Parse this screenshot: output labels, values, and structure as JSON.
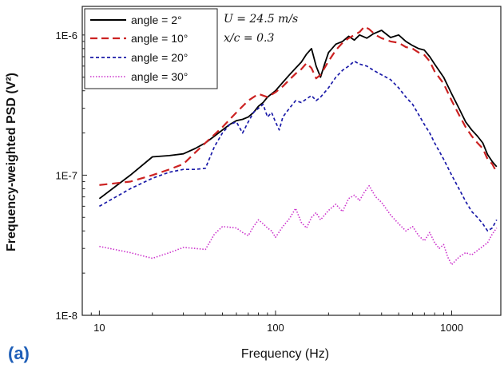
{
  "chart_data": {
    "type": "line",
    "panel_label": "(a)",
    "xlabel": "Frequency (Hz)",
    "ylabel": "Frequency-weighted PSD (V²)",
    "xscale": "log",
    "yscale": "log",
    "xlim": [
      8,
      1900
    ],
    "ylim": [
      1e-08,
      1.6e-06
    ],
    "x_ticks": [
      10,
      100,
      1000
    ],
    "x_tick_labels": [
      "10",
      "100",
      "1000"
    ],
    "y_ticks": [
      1e-08,
      1e-07,
      1e-06
    ],
    "y_tick_labels": [
      "1E-8",
      "1E-7",
      "1E-6"
    ],
    "grid": false,
    "legend_position": "top-left",
    "annotations": [
      "U = 24.5 m/s",
      "x/c = 0.3"
    ],
    "colors": {
      "angle_2": "#000000",
      "angle_10": "#cc2222",
      "angle_20": "#1a1aa8",
      "angle_30": "#cc33cc",
      "panel_label": "#1f5fb8"
    },
    "series": [
      {
        "name": "angle = 2°",
        "color": "#000000",
        "dash": "solid",
        "x": [
          10,
          15,
          20,
          25,
          30,
          35,
          40,
          45,
          50,
          55,
          60,
          65,
          70,
          75,
          80,
          85,
          90,
          95,
          100,
          110,
          120,
          130,
          140,
          150,
          160,
          170,
          180,
          190,
          200,
          220,
          240,
          260,
          280,
          300,
          330,
          360,
          400,
          450,
          500,
          550,
          600,
          650,
          700,
          750,
          800,
          900,
          1000,
          1100,
          1200,
          1300,
          1400,
          1500,
          1600,
          1700,
          1800
        ],
        "y": [
          6.8e-08,
          1e-07,
          1.35e-07,
          1.38e-07,
          1.42e-07,
          1.55e-07,
          1.7e-07,
          1.9e-07,
          2.1e-07,
          2.3e-07,
          2.45e-07,
          2.5e-07,
          2.6e-07,
          2.8e-07,
          3.1e-07,
          3.3e-07,
          3.6e-07,
          3.8e-07,
          4e-07,
          4.6e-07,
          5.2e-07,
          5.8e-07,
          6.4e-07,
          7.3e-07,
          8e-07,
          6e-07,
          5e-07,
          6.2e-07,
          7.5e-07,
          8.6e-07,
          9e-07,
          9.8e-07,
          9.2e-07,
          1e-06,
          9.5e-07,
          1.02e-06,
          1.08e-06,
          9.6e-07,
          1e-06,
          9e-07,
          8.4e-07,
          8e-07,
          7.8e-07,
          7e-07,
          6.2e-07,
          5e-07,
          3.8e-07,
          3e-07,
          2.4e-07,
          2.1e-07,
          1.9e-07,
          1.7e-07,
          1.4e-07,
          1.25e-07,
          1.15e-07
        ]
      },
      {
        "name": "angle = 10°",
        "color": "#cc2222",
        "dash": "long-dash",
        "x": [
          10,
          15,
          20,
          25,
          30,
          35,
          40,
          45,
          50,
          55,
          60,
          65,
          70,
          75,
          80,
          90,
          100,
          110,
          120,
          130,
          140,
          150,
          160,
          170,
          180,
          200,
          220,
          240,
          260,
          280,
          300,
          320,
          340,
          370,
          400,
          450,
          500,
          550,
          600,
          650,
          700,
          750,
          800,
          900,
          1000,
          1100,
          1200,
          1300,
          1400,
          1500,
          1600,
          1700,
          1800
        ],
        "y": [
          8.5e-08,
          9e-08,
          1e-07,
          1.1e-07,
          1.2e-07,
          1.45e-07,
          1.7e-07,
          1.95e-07,
          2.2e-07,
          2.5e-07,
          2.8e-07,
          3.1e-07,
          3.4e-07,
          3.6e-07,
          3.8e-07,
          3.6e-07,
          3.9e-07,
          4.3e-07,
          4.8e-07,
          5.3e-07,
          5.7e-07,
          6.3e-07,
          5.8e-07,
          4.9e-07,
          5.2e-07,
          6.5e-07,
          7.8e-07,
          8.8e-07,
          9.5e-07,
          1e-06,
          1.05e-06,
          1.15e-06,
          1.1e-06,
          1e-06,
          9.5e-07,
          9e-07,
          8.8e-07,
          8.2e-07,
          8e-07,
          7.5e-07,
          7.2e-07,
          6.5e-07,
          5.5e-07,
          4.5e-07,
          3.4e-07,
          2.7e-07,
          2.2e-07,
          1.9e-07,
          1.7e-07,
          1.55e-07,
          1.3e-07,
          1.2e-07,
          1.05e-07
        ]
      },
      {
        "name": "angle = 20°",
        "color": "#1a1aa8",
        "dash": "short-dash",
        "x": [
          10,
          15,
          20,
          25,
          30,
          35,
          40,
          45,
          50,
          55,
          60,
          65,
          70,
          75,
          80,
          85,
          90,
          95,
          100,
          105,
          110,
          120,
          130,
          140,
          150,
          160,
          170,
          180,
          200,
          220,
          240,
          260,
          280,
          300,
          330,
          360,
          400,
          450,
          500,
          550,
          600,
          650,
          700,
          750,
          800,
          900,
          1000,
          1100,
          1200,
          1300,
          1400,
          1500,
          1600,
          1700,
          1800
        ],
        "y": [
          6e-08,
          8e-08,
          9.5e-08,
          1.05e-07,
          1.1e-07,
          1.1e-07,
          1.12e-07,
          1.6e-07,
          2e-07,
          2.3e-07,
          2.4e-07,
          2e-07,
          2.4e-07,
          2.8e-07,
          3e-07,
          3.2e-07,
          2.6e-07,
          2.8e-07,
          2.4e-07,
          2.1e-07,
          2.6e-07,
          3e-07,
          3.4e-07,
          3.3e-07,
          3.5e-07,
          3.7e-07,
          3.4e-07,
          3.6e-07,
          4.2e-07,
          5e-07,
          5.6e-07,
          6e-07,
          6.5e-07,
          6.2e-07,
          6e-07,
          5.6e-07,
          5.2e-07,
          4.8e-07,
          4.2e-07,
          3.6e-07,
          3.2e-07,
          2.7e-07,
          2.3e-07,
          2e-07,
          1.7e-07,
          1.3e-07,
          1e-07,
          8e-08,
          6.5e-08,
          5.5e-08,
          5e-08,
          4.5e-08,
          4e-08,
          4.2e-08,
          4.8e-08
        ]
      },
      {
        "name": "angle  = 30°",
        "color": "#cc33cc",
        "dash": "dotted",
        "x": [
          10,
          15,
          20,
          25,
          30,
          35,
          40,
          45,
          50,
          55,
          60,
          65,
          70,
          75,
          80,
          85,
          90,
          95,
          100,
          110,
          120,
          130,
          140,
          150,
          160,
          170,
          180,
          200,
          220,
          240,
          260,
          280,
          300,
          320,
          340,
          370,
          400,
          450,
          500,
          550,
          600,
          650,
          700,
          750,
          800,
          850,
          900,
          950,
          1000,
          1100,
          1200,
          1300,
          1400,
          1500,
          1600,
          1700,
          1800
        ],
        "y": [
          3.1e-08,
          2.8e-08,
          2.55e-08,
          2.8e-08,
          3.05e-08,
          3e-08,
          2.95e-08,
          3.8e-08,
          4.3e-08,
          4.25e-08,
          4.2e-08,
          3.9e-08,
          3.7e-08,
          4.3e-08,
          4.8e-08,
          4.5e-08,
          4.2e-08,
          4e-08,
          3.6e-08,
          4.3e-08,
          4.9e-08,
          5.8e-08,
          4.6e-08,
          4.2e-08,
          5e-08,
          5.4e-08,
          4.8e-08,
          5.6e-08,
          6.2e-08,
          5.5e-08,
          6.8e-08,
          7.2e-08,
          6.6e-08,
          7.6e-08,
          8.4e-08,
          7e-08,
          6.4e-08,
          5.2e-08,
          4.5e-08,
          4e-08,
          4.3e-08,
          3.7e-08,
          3.4e-08,
          3.9e-08,
          3.3e-08,
          3e-08,
          3.2e-08,
          2.6e-08,
          2.3e-08,
          2.6e-08,
          2.8e-08,
          2.7e-08,
          2.9e-08,
          3.1e-08,
          3.3e-08,
          3.8e-08,
          4.2e-08
        ]
      }
    ]
  }
}
